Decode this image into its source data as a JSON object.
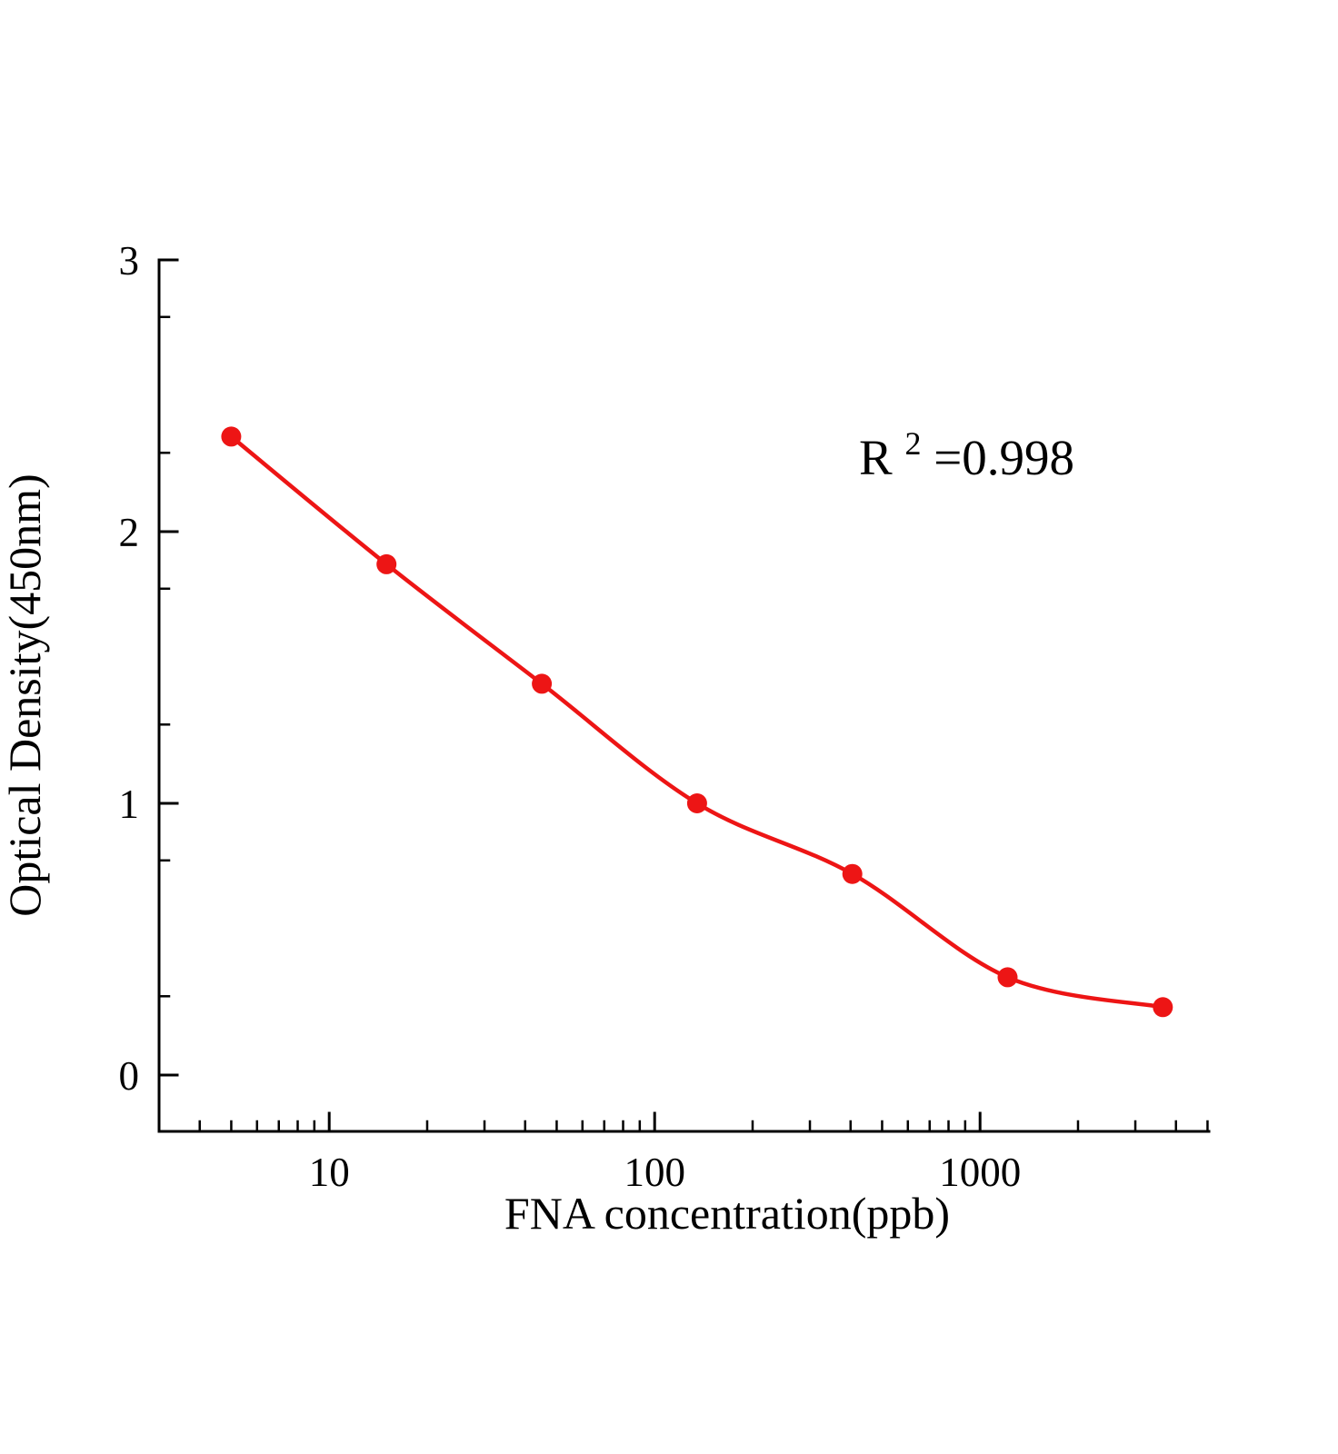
{
  "page": {
    "background": "#ffffff"
  },
  "chart_data": {
    "type": "scatter",
    "title": "",
    "xlabel": "FNA concentration(ppb)",
    "ylabel": "Optical Density(450nm)",
    "xscale": "log",
    "yscale": "linear",
    "xlim": [
      3,
      5050
    ],
    "ylim": [
      -0.21,
      3
    ],
    "x": [
      5,
      15,
      45,
      135,
      405,
      1215,
      3645
    ],
    "y": [
      2.35,
      1.88,
      1.44,
      1.0,
      0.74,
      0.36,
      0.25
    ],
    "x_major_ticks": [
      10,
      100,
      1000
    ],
    "x_tick_labels": [
      "10",
      "100",
      "1000"
    ],
    "y_major_ticks": [
      0,
      1,
      2,
      3
    ],
    "y_tick_labels": [
      "0",
      "1",
      "2",
      "3"
    ],
    "y_minor_step": 0.5,
    "fit": "smooth sigmoidal standard curve through data points",
    "marker": "circle",
    "marker_radius_px": 11,
    "marker_color": "#ed1515",
    "line_color": "#ed1515",
    "axis_color": "#000000",
    "grid": false,
    "legend": "none",
    "annotation": "R2=0.998"
  },
  "annotation": {
    "base": "R",
    "superscript": "2",
    "rest": "=0.998"
  }
}
